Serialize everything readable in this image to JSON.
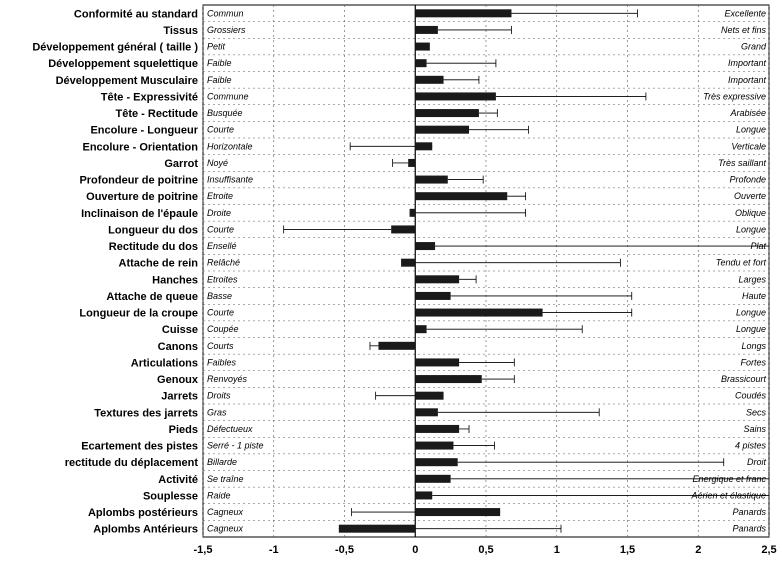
{
  "chart_data": {
    "type": "bar",
    "orientation": "horizontal",
    "xlim": [
      -1.5,
      2.5
    ],
    "x_ticks": [
      "-1,5",
      "-1",
      "-0,5",
      "0",
      "0,5",
      "1",
      "1,5",
      "2",
      "2,5"
    ],
    "grid": true,
    "bar_color": "#1a1a1a",
    "rows": [
      {
        "trait": "Conformité au standard",
        "low": "Commun",
        "high": "Excellente",
        "value": 0.68,
        "error_to": 1.57
      },
      {
        "trait": "Tissus",
        "low": "Grossiers",
        "high": "Nets et fins",
        "value": 0.16,
        "error_to": 0.68
      },
      {
        "trait": "Développement général ( taille )",
        "low": "Petit",
        "high": "Grand",
        "value": 0.1,
        "error_to": 0.1
      },
      {
        "trait": "Développement squelettique",
        "low": "Faible",
        "high": "Important",
        "value": 0.08,
        "error_to": 0.57
      },
      {
        "trait": "Développement Musculaire",
        "low": "Faible",
        "high": "Important",
        "value": 0.2,
        "error_to": 0.45
      },
      {
        "trait": "Tête - Expressivité",
        "low": "Commune",
        "high": "Très expressive",
        "value": 0.57,
        "error_to": 1.63
      },
      {
        "trait": "Tête - Rectitude",
        "low": "Busquée",
        "high": "Arabisée",
        "value": 0.45,
        "error_to": 0.58
      },
      {
        "trait": "Encolure - Longueur",
        "low": "Courte",
        "high": "Longue",
        "value": 0.38,
        "error_to": 0.8
      },
      {
        "trait": "Encolure - Orientation",
        "low": "Horizontale",
        "high": "Verticale",
        "value": 0.12,
        "error_to": -0.46
      },
      {
        "trait": "Garrot",
        "low": "Noyé",
        "high": "Très saillant",
        "value": -0.05,
        "error_to": -0.16
      },
      {
        "trait": "Profondeur de poitrine",
        "low": "Insuffisante",
        "high": "Profonde",
        "value": 0.23,
        "error_to": 0.48
      },
      {
        "trait": "Ouverture de poitrine",
        "low": "Etroite",
        "high": "Ouverte",
        "value": 0.65,
        "error_to": 0.78
      },
      {
        "trait": "Inclinaison de l'épaule",
        "low": "Droite",
        "high": "Oblique",
        "value": -0.04,
        "error_to": 0.78
      },
      {
        "trait": "Longueur du dos",
        "low": "Courte",
        "high": "Longue",
        "value": -0.17,
        "error_to": -0.93
      },
      {
        "trait": "Rectitude du dos",
        "low": "Ensellé",
        "high": "Plat",
        "value": 0.14,
        "error_to": 2.6
      },
      {
        "trait": "Attache de rein",
        "low": "Relâché",
        "high": "Tendu et fort",
        "value": -0.1,
        "error_to": 1.45
      },
      {
        "trait": "Hanches",
        "low": "Etroites",
        "high": "Larges",
        "value": 0.31,
        "error_to": 0.43
      },
      {
        "trait": "Attache de queue",
        "low": "Basse",
        "high": "Haute",
        "value": 0.25,
        "error_to": 1.53
      },
      {
        "trait": "Longueur de la croupe",
        "low": "Courte",
        "high": "Longue",
        "value": 0.9,
        "error_to": 1.53
      },
      {
        "trait": "Cuisse",
        "low": "Coupée",
        "high": "Longue",
        "value": 0.08,
        "error_to": 1.18
      },
      {
        "trait": "Canons",
        "low": "Courts",
        "high": "Longs",
        "value": -0.26,
        "error_to": -0.32
      },
      {
        "trait": "Articulations",
        "low": "Faibles",
        "high": "Fortes",
        "value": 0.31,
        "error_to": 0.7
      },
      {
        "trait": "Genoux",
        "low": "Renvoyés",
        "high": "Brassicourt",
        "value": 0.47,
        "error_to": 0.7
      },
      {
        "trait": "Jarrets",
        "low": "Droits",
        "high": "Coudés",
        "value": 0.2,
        "error_to": -0.28
      },
      {
        "trait": "Textures des jarrets",
        "low": "Gras",
        "high": "Secs",
        "value": 0.16,
        "error_to": 1.3
      },
      {
        "trait": "Pieds",
        "low": "Défectueux",
        "high": "Sains",
        "value": 0.31,
        "error_to": 0.38
      },
      {
        "trait": "Ecartement des pistes",
        "low": "Serré - 1 piste",
        "high": "4 pistes",
        "value": 0.27,
        "error_to": 0.56
      },
      {
        "trait": "rectitude du déplacement",
        "low": "Billarde",
        "high": "Droit",
        "value": 0.3,
        "error_to": 2.18
      },
      {
        "trait": "Activité",
        "low": "Se traîne",
        "high": "Energique et franc",
        "value": 0.25,
        "error_to": 2.6
      },
      {
        "trait": "Souplesse",
        "low": "Raide",
        "high": "Aérien et élastique",
        "value": 0.12,
        "error_to": 2.6
      },
      {
        "trait": "Aplombs postérieurs",
        "low": "Cagneux",
        "high": "Panards",
        "value": 0.6,
        "error_to": -0.45
      },
      {
        "trait": "Aplombs Antérieurs",
        "low": "Cagneux",
        "high": "Panards",
        "value": -0.54,
        "error_to": 1.03
      }
    ]
  }
}
